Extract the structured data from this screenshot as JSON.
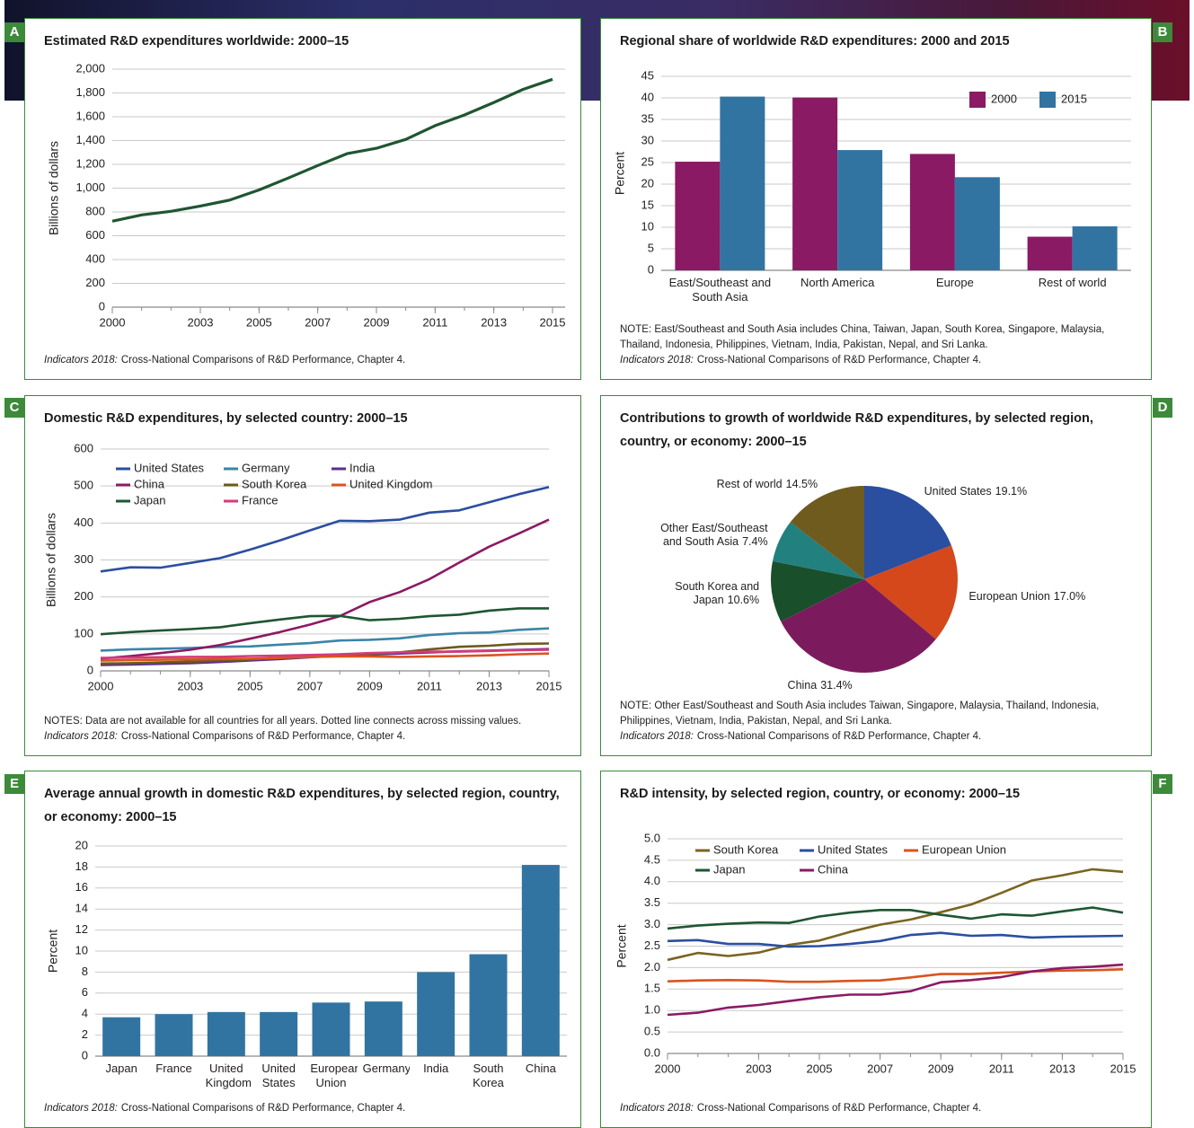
{
  "chart_data": [
    {
      "panel": "A",
      "type": "line",
      "title": "Estimated R&D expenditures worldwide: 2000–15",
      "y_label": "Billions of dollars",
      "x": [
        2000,
        2001,
        2002,
        2003,
        2004,
        2005,
        2006,
        2007,
        2008,
        2009,
        2010,
        2011,
        2012,
        2013,
        2014,
        2015
      ],
      "values": [
        722,
        775,
        805,
        850,
        900,
        985,
        1085,
        1190,
        1290,
        1335,
        1410,
        1525,
        1615,
        1720,
        1830,
        1915
      ],
      "color": "#1e5631",
      "xlim": [
        2000,
        2015
      ],
      "xticks": [
        2000,
        2003,
        2005,
        2007,
        2009,
        2011,
        2013,
        2015
      ],
      "ylim": [
        0,
        2000
      ],
      "yticks": [
        0,
        200,
        400,
        600,
        800,
        {
          "value": 1000,
          "label": "1,000"
        },
        {
          "value": 1200,
          "label": "1,200"
        },
        {
          "value": 1400,
          "label": "1,400"
        },
        {
          "value": 1600,
          "label": "1,600"
        },
        {
          "value": 1800,
          "label": "1,800"
        },
        {
          "value": 2000,
          "label": "2,000"
        }
      ],
      "grid": true,
      "source_publication": "Indicators 2018:",
      "source": "Cross-National Comparisons of R&D Performance, Chapter 4."
    },
    {
      "panel": "B",
      "type": "bar",
      "title": "Regional share of worldwide R&D expenditures: 2000 and 2015",
      "y_label": "Percent",
      "categories": [
        "East/Southeast and South Asia",
        "North America",
        "Europe",
        "Rest of world"
      ],
      "series": [
        {
          "name": "2000",
          "color": "#8b1a64",
          "values": [
            25.2,
            40.1,
            27.0,
            7.8
          ]
        },
        {
          "name": "2015",
          "color": "#3274a1",
          "values": [
            40.3,
            27.9,
            21.6,
            10.2
          ]
        }
      ],
      "ylim": [
        0,
        45
      ],
      "yticks": [
        0,
        5,
        10,
        15,
        20,
        25,
        30,
        35,
        40,
        45
      ],
      "grid": true,
      "legend": "upper right",
      "note": "NOTE: East/Southeast and South Asia includes China, Taiwan, Japan, South Korea, Singapore, Malaysia, Thailand, Indonesia, Philippines, Vietnam, India, Pakistan, Nepal, and Sri Lanka.",
      "source_publication": "Indicators 2018:",
      "source": "Cross-National Comparisons of R&D Performance, Chapter 4."
    },
    {
      "panel": "C",
      "type": "line",
      "title": "Domestic R&D expenditures, by selected country: 2000–15",
      "y_label": "Billions of dollars",
      "x": [
        2000,
        2001,
        2002,
        2003,
        2004,
        2005,
        2006,
        2007,
        2008,
        2009,
        2010,
        2011,
        2012,
        2013,
        2014,
        2015
      ],
      "series": [
        {
          "name": "United States",
          "color": "#2b4ea0",
          "values": [
            269,
            280,
            279,
            292,
            305,
            328,
            353,
            380,
            406,
            405,
            409,
            428,
            434,
            456,
            478,
            497
          ]
        },
        {
          "name": "Germany",
          "color": "#3a85a8",
          "values": [
            55,
            58,
            60,
            62,
            65,
            66,
            71,
            75,
            82,
            84,
            88,
            97,
            102,
            104,
            111,
            115
          ]
        },
        {
          "name": "India",
          "color": "#5c2d91",
          "values": [
            16,
            17,
            19,
            21,
            24,
            28,
            32,
            37,
            41,
            44,
            47,
            50,
            53,
            55,
            57,
            59
          ]
        },
        {
          "name": "China",
          "color": "#8b1a64",
          "values": [
            33,
            40,
            48,
            57,
            70,
            87,
            105,
            125,
            148,
            186,
            213,
            248,
            293,
            336,
            372,
            409
          ]
        },
        {
          "name": "South Korea",
          "color": "#6b5a1c",
          "values": [
            20,
            21,
            23,
            25,
            28,
            31,
            35,
            40,
            43,
            46,
            50,
            58,
            65,
            68,
            73,
            74
          ]
        },
        {
          "name": "United Kingdom",
          "color": "#d9541e",
          "values": [
            28,
            29,
            30,
            31,
            32,
            33,
            35,
            38,
            39,
            39,
            38,
            39,
            40,
            42,
            45,
            47
          ]
        },
        {
          "name": "Japan",
          "color": "#1e5631",
          "values": [
            99,
            105,
            109,
            113,
            118,
            129,
            139,
            148,
            149,
            137,
            141,
            148,
            152,
            163,
            169,
            169
          ]
        },
        {
          "name": "France",
          "color": "#d63a7a",
          "values": [
            35,
            36,
            37,
            38,
            38,
            40,
            41,
            43,
            45,
            48,
            50,
            52,
            52,
            54,
            56,
            57
          ]
        }
      ],
      "xlim": [
        2000,
        2015
      ],
      "xticks": [
        2000,
        2003,
        2005,
        2007,
        2009,
        2011,
        2013,
        2015
      ],
      "ylim": [
        0,
        600
      ],
      "yticks": [
        0,
        100,
        200,
        300,
        400,
        500,
        600
      ],
      "grid": true,
      "legend": "upper left",
      "note": "NOTES: Data are not available for all countries for all years. Dotted line connects across missing values.",
      "source_publication": "Indicators 2018:",
      "source": "Cross-National Comparisons of R&D Performance, Chapter 4."
    },
    {
      "panel": "D",
      "type": "pie",
      "title": "Contributions to growth of worldwide R&D expenditures, by selected region, country, or economy: 2000–15",
      "categories": [
        "United States",
        "European Union",
        "China",
        "South Korea and Japan",
        "Other East/Southeast and South Asia",
        "Rest of world"
      ],
      "values": [
        19.1,
        17.0,
        31.4,
        10.6,
        7.4,
        14.5
      ],
      "value_labels": [
        "19.1%",
        "17.0%",
        "31.4%",
        "10.6%",
        "7.4%",
        "14.5%"
      ],
      "colors": [
        "#2a4ea0",
        "#d4481c",
        "#7b1b5e",
        "#1a4f2c",
        "#22807f",
        "#6f5b1e"
      ],
      "note": "NOTE: Other East/Southeast and South Asia includes Taiwan, Singapore, Malaysia, Thailand, Indonesia, Philippines, Vietnam, India, Pakistan, Nepal, and Sri Lanka.",
      "source_publication": "Indicators 2018:",
      "source": "Cross-National Comparisons of R&D Performance, Chapter 4."
    },
    {
      "panel": "E",
      "type": "bar",
      "title": "Average annual growth in domestic R&D expenditures, by selected region, country, or economy: 2000–15",
      "y_label": "Percent",
      "categories": [
        "Japan",
        "France",
        "United Kingdom",
        "United States",
        "European Union",
        "Germany",
        "India",
        "South Korea",
        "China"
      ],
      "values": [
        3.7,
        4.0,
        4.2,
        4.2,
        5.1,
        5.2,
        8.0,
        9.7,
        18.2
      ],
      "color": "#3274a1",
      "ylim": [
        0,
        20
      ],
      "yticks": [
        0,
        2,
        4,
        6,
        8,
        10,
        12,
        14,
        16,
        18,
        20
      ],
      "grid": true,
      "source_publication": "Indicators 2018:",
      "source": "Cross-National Comparisons of R&D Performance, Chapter 4."
    },
    {
      "panel": "F",
      "type": "line",
      "title": "R&D intensity, by selected region, country, or economy: 2000–15",
      "y_label": "Percent",
      "x": [
        2000,
        2001,
        2002,
        2003,
        2004,
        2005,
        2006,
        2007,
        2008,
        2009,
        2010,
        2011,
        2012,
        2013,
        2014,
        2015
      ],
      "series": [
        {
          "name": "South Korea",
          "color": "#7a6420",
          "values": [
            2.18,
            2.34,
            2.27,
            2.35,
            2.53,
            2.63,
            2.83,
            3.0,
            3.12,
            3.29,
            3.47,
            3.74,
            4.03,
            4.15,
            4.29,
            4.23
          ]
        },
        {
          "name": "United States",
          "color": "#2b4ea0",
          "values": [
            2.62,
            2.64,
            2.55,
            2.55,
            2.49,
            2.5,
            2.55,
            2.62,
            2.76,
            2.81,
            2.74,
            2.76,
            2.7,
            2.72,
            2.73,
            2.74
          ]
        },
        {
          "name": "European Union",
          "color": "#d9541e",
          "values": [
            1.68,
            1.7,
            1.71,
            1.7,
            1.67,
            1.67,
            1.69,
            1.7,
            1.77,
            1.85,
            1.85,
            1.88,
            1.91,
            1.93,
            1.94,
            1.96
          ]
        },
        {
          "name": "Japan",
          "color": "#1e5631",
          "values": [
            2.91,
            2.98,
            3.02,
            3.05,
            3.04,
            3.19,
            3.28,
            3.34,
            3.34,
            3.23,
            3.14,
            3.24,
            3.21,
            3.31,
            3.4,
            3.28
          ]
        },
        {
          "name": "China",
          "color": "#8b1a64",
          "values": [
            0.9,
            0.95,
            1.07,
            1.13,
            1.22,
            1.31,
            1.37,
            1.37,
            1.45,
            1.66,
            1.71,
            1.78,
            1.91,
            1.99,
            2.02,
            2.07
          ]
        }
      ],
      "xlim": [
        2000,
        2015
      ],
      "xticks": [
        2000,
        2003,
        2005,
        2007,
        2009,
        2011,
        2013,
        2015
      ],
      "ylim": [
        0,
        5
      ],
      "yticks": [
        {
          "value": 0,
          "label": "0.0"
        },
        0.5,
        {
          "value": 1,
          "label": "1.0"
        },
        1.5,
        {
          "value": 2,
          "label": "2.0"
        },
        2.5,
        {
          "value": 3,
          "label": "3.0"
        },
        3.5,
        {
          "value": 4,
          "label": "4.0"
        },
        4.5,
        {
          "value": 5,
          "label": "5.0"
        }
      ],
      "grid": true,
      "legend": "upper left",
      "source_publication": "Indicators 2018:",
      "source": "Cross-National Comparisons of R&D Performance, Chapter 4."
    }
  ]
}
